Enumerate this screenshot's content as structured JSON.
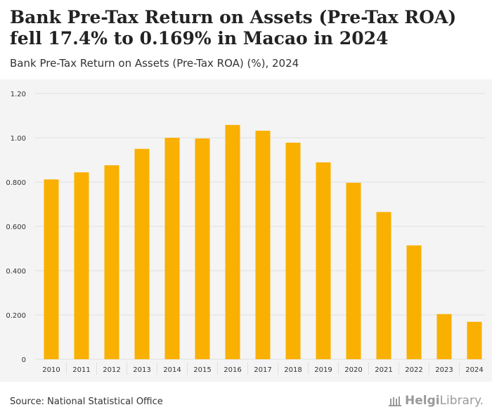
{
  "header": {
    "title": "Bank Pre-Tax Return on Assets (Pre-Tax ROA) fell 17.4% to 0.169% in Macao in 2024",
    "subtitle": "Bank Pre-Tax Return on Assets (Pre-Tax ROA) (%), 2024"
  },
  "footer": {
    "source": "Source: National Statistical Office",
    "logo_brand": "Helgi",
    "logo_suffix": "Library."
  },
  "colors": {
    "bar": "#f9b000",
    "grid": "#e0e0e0",
    "tick_text": "#333333"
  },
  "chart_data": {
    "type": "bar",
    "title": "Bank Pre-Tax Return on Assets (Pre-Tax ROA) (%), 2024",
    "xlabel": "",
    "ylabel": "",
    "categories": [
      "2010",
      "2011",
      "2012",
      "2013",
      "2014",
      "2015",
      "2016",
      "2017",
      "2018",
      "2019",
      "2020",
      "2021",
      "2022",
      "2023",
      "2024"
    ],
    "values": [
      0.812,
      0.844,
      0.876,
      0.95,
      1.0,
      0.997,
      1.058,
      1.032,
      0.978,
      0.889,
      0.797,
      0.665,
      0.514,
      0.204,
      0.169
    ],
    "ylim": [
      0,
      1.2
    ],
    "yticks": [
      0,
      0.2,
      0.4,
      0.6,
      0.8,
      1.0,
      1.2
    ],
    "ytick_labels": [
      "0",
      "0.200",
      "0.400",
      "0.600",
      "0.800",
      "1.00",
      "1.20"
    ],
    "grid": true,
    "legend": "none"
  }
}
